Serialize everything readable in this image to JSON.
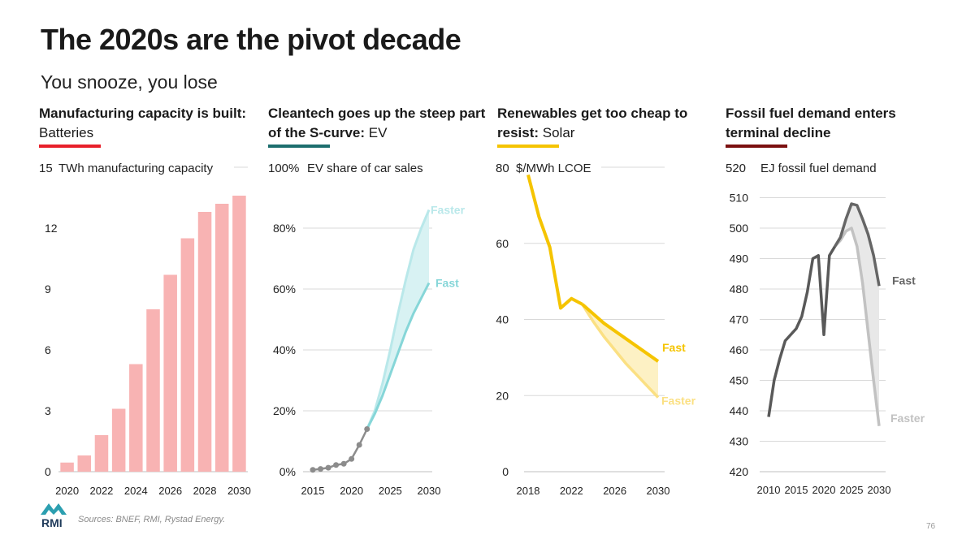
{
  "page": {
    "title": "The 2020s are the pivot decade",
    "subtitle": "You snooze, you lose",
    "sources": "Sources:  BNEF, RMI, Rystad Energy.",
    "page_number": "76",
    "logo_text": "RMI"
  },
  "panels": [
    {
      "bold": "Manufacturing capacity is built:",
      "normal": " Batteries",
      "color": "#e8202a"
    },
    {
      "bold": "Cleantech goes up the steep part of the S-curve:",
      "normal": "  EV",
      "color": "#1d6e6e"
    },
    {
      "bold": "Renewables get too cheap to resist:",
      "normal": " Solar",
      "color": "#f5c400"
    },
    {
      "bold": "Fossil fuel demand enters terminal decline",
      "normal": "",
      "color": "#7b1010"
    }
  ],
  "chart_data": [
    {
      "type": "bar",
      "title": "Batteries",
      "ylabel": "TWh manufacturing capacity",
      "top_tick": "15",
      "ylim": [
        0,
        15
      ],
      "yticks": [
        0,
        3,
        6,
        9,
        12
      ],
      "categories": [
        2020,
        2021,
        2022,
        2023,
        2024,
        2025,
        2026,
        2027,
        2028,
        2029,
        2030
      ],
      "xtick_labels": [
        "2020",
        "2022",
        "2024",
        "2026",
        "2028",
        "2030"
      ],
      "values": [
        0.45,
        0.8,
        1.8,
        3.1,
        5.3,
        8.0,
        9.7,
        11.5,
        12.8,
        13.2,
        13.6
      ],
      "color": "#f8b3b3"
    },
    {
      "type": "line",
      "title": "EV",
      "ylabel": "EV share of car sales",
      "top_tick": "100%",
      "ylim": [
        0,
        100
      ],
      "yticks": [
        0,
        20,
        40,
        60,
        80
      ],
      "ytick_labels": [
        "0%",
        "20%",
        "40%",
        "60%",
        "80%"
      ],
      "xlim": [
        2015,
        2030
      ],
      "xtick_labels": [
        "2015",
        "2020",
        "2025",
        "2030"
      ],
      "series": [
        {
          "name": "Historical",
          "x": [
            2015,
            2016,
            2017,
            2018,
            2019,
            2020,
            2021,
            2022
          ],
          "y": [
            0.6,
            0.9,
            1.3,
            2.2,
            2.6,
            4.2,
            8.8,
            14
          ],
          "color": "#8c8c8c"
        },
        {
          "name": "Fast",
          "x": [
            2022,
            2023,
            2024,
            2025,
            2026,
            2027,
            2028,
            2029,
            2030
          ],
          "y": [
            14,
            19,
            25,
            32,
            39,
            46,
            52,
            57,
            62
          ],
          "color": "#86d6d8"
        },
        {
          "name": "Faster",
          "x": [
            2022,
            2023,
            2024,
            2025,
            2026,
            2027,
            2028,
            2029,
            2030
          ],
          "y": [
            14,
            20,
            29,
            40,
            52,
            63,
            73,
            80,
            86
          ],
          "color": "#b9e8ea"
        }
      ]
    },
    {
      "type": "line",
      "title": "Solar",
      "ylabel": "$/MWh LCOE",
      "top_tick": "80",
      "ylim": [
        0,
        80
      ],
      "yticks": [
        0,
        20,
        40,
        60
      ],
      "xlim": [
        2018,
        2030
      ],
      "xtick_labels": [
        "2018",
        "2022",
        "2026",
        "2030"
      ],
      "series": [
        {
          "name": "Historical",
          "x": [
            2018,
            2019,
            2020,
            2021,
            2022,
            2023
          ],
          "y": [
            78,
            67,
            59,
            43,
            45.5,
            44
          ],
          "color": "#f5c400"
        },
        {
          "name": "Fast",
          "x": [
            2023,
            2024,
            2025,
            2026,
            2027,
            2028,
            2029,
            2030
          ],
          "y": [
            44,
            41.5,
            39,
            37,
            35,
            33,
            31,
            29
          ],
          "color": "#f5c400"
        },
        {
          "name": "Faster",
          "x": [
            2023,
            2024,
            2025,
            2026,
            2027,
            2028,
            2029,
            2030
          ],
          "y": [
            44,
            39.5,
            35.5,
            32,
            28.5,
            25.5,
            22.5,
            19.5
          ],
          "color": "#fbe083"
        }
      ]
    },
    {
      "type": "line",
      "title": "Fossil fuel demand",
      "ylabel": "EJ fossil fuel demand",
      "top_tick": "520",
      "ylim": [
        420,
        520
      ],
      "yticks": [
        420,
        430,
        440,
        450,
        460,
        470,
        480,
        490,
        500,
        510
      ],
      "xlim": [
        2010,
        2030
      ],
      "xtick_labels": [
        "2010",
        "2015",
        "2020",
        "2025",
        "2030"
      ],
      "series": [
        {
          "name": "Historical",
          "x": [
            2010,
            2011,
            2012,
            2013,
            2014,
            2015,
            2016,
            2017,
            2018,
            2019,
            2020,
            2021,
            2022
          ],
          "y": [
            438,
            450,
            457,
            463,
            465,
            467,
            471,
            479,
            490,
            491,
            465,
            491,
            494
          ],
          "color": "#595959"
        },
        {
          "name": "Fast",
          "x": [
            2022,
            2023,
            2024,
            2025,
            2026,
            2027,
            2028,
            2029,
            2030
          ],
          "y": [
            494,
            497,
            503,
            508,
            507.5,
            503,
            498,
            491,
            481
          ],
          "color": "#666666"
        },
        {
          "name": "Faster",
          "x": [
            2022,
            2023,
            2024,
            2025,
            2026,
            2027,
            2028,
            2029,
            2030
          ],
          "y": [
            494,
            496,
            499,
            500,
            494,
            482,
            466,
            450,
            435
          ],
          "color": "#c2c2c2"
        }
      ]
    }
  ]
}
